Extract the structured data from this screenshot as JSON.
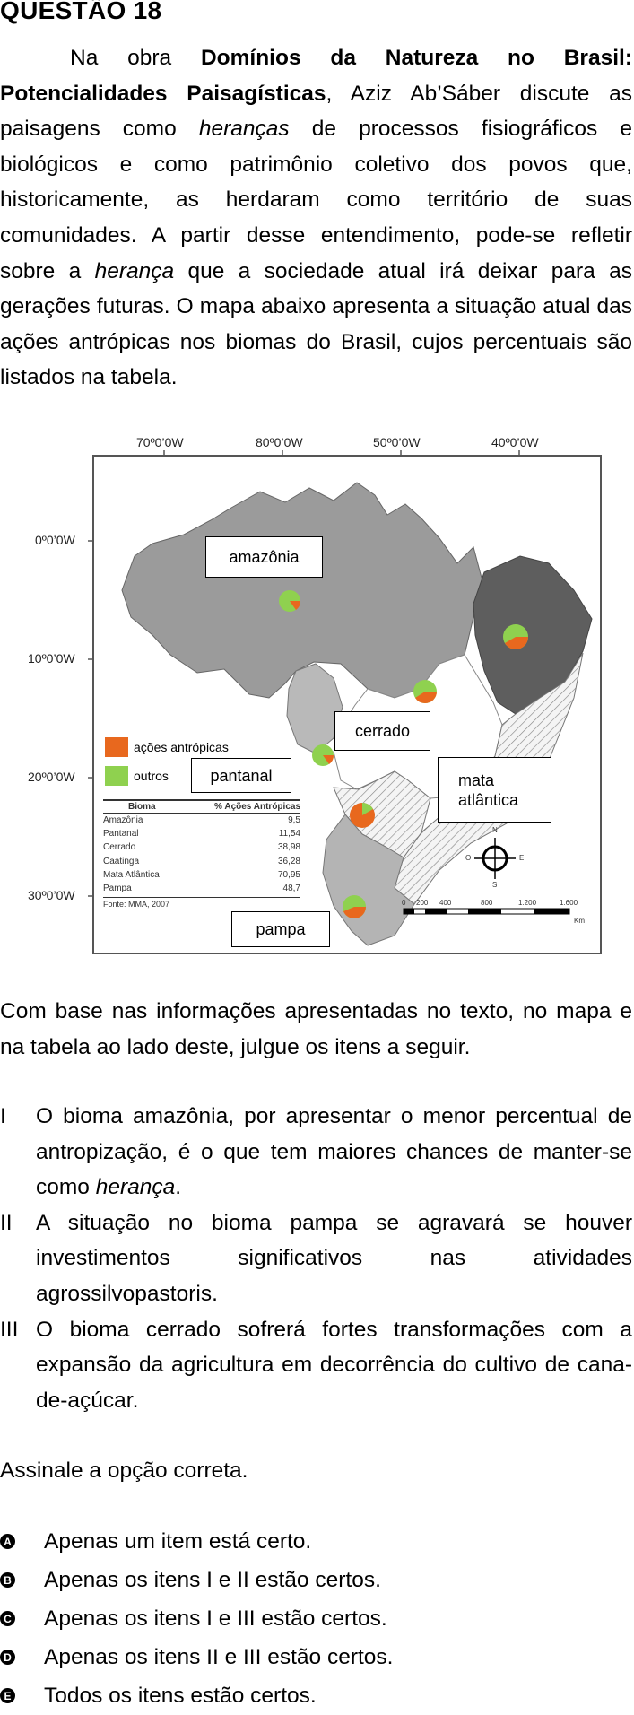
{
  "question": {
    "heading": "QUESTÃO 18",
    "intro": {
      "before_title": "Na obra ",
      "title": "Domínios da Natureza no Brasil: Potencialidades Paisagísticas",
      "part1": ", Aziz Ab’Sáber discute as paisagens como ",
      "em1": "heranças",
      "part2": " de processos fisiográficos e biológicos e como patrimônio coletivo dos povos que, historicamente, as herdaram como território de suas comunidades. A partir desse entendimento, pode-se refletir sobre a ",
      "em2": "herança",
      "part3": " que a sociedade atual irá deixar para as gerações futuras. O mapa abaixo apresenta a situação atual das ações antrópicas nos biomas do Brasil, cujos percentuais são listados na tabela."
    },
    "map": {
      "top_coords": [
        "70º0’0W",
        "80º0’0W",
        "50º0’0W",
        "40º0’0W"
      ],
      "left_coords": [
        "0º0’0W",
        "10º0’0W",
        "20º0’0W",
        "30º0’0W"
      ],
      "biome_labels": {
        "amazonia": "amazônia",
        "cerrado": "cerrado",
        "pantanal": "pantanal",
        "mata_line1": "mata",
        "mata_line2": "atlântica",
        "pampa": "pampa"
      },
      "legend": {
        "anthropic": "ações antrópicas",
        "others": "outros",
        "anthropic_color": "#e8681e",
        "others_color": "#8fd14f"
      },
      "table": {
        "col_biome": "Bioma",
        "col_pct": "% Ações Antrópicas",
        "rows": [
          {
            "biome": "Amazônia",
            "pct": "9,5"
          },
          {
            "biome": "Pantanal",
            "pct": "11,54"
          },
          {
            "biome": "Cerrado",
            "pct": "38,98"
          },
          {
            "biome": "Caatinga",
            "pct": "36,28"
          },
          {
            "biome": "Mata Atlântica",
            "pct": "70,95"
          },
          {
            "biome": "Pampa",
            "pct": "48,7"
          }
        ],
        "source": "Fonte: MMA, 2007"
      },
      "scale": {
        "ticks": [
          "0",
          "200",
          "400",
          "800",
          "1.200",
          "1.600"
        ],
        "unit": "Km"
      },
      "compass": {
        "n": "N",
        "s": "S",
        "e": "E",
        "w": "O"
      }
    },
    "paragraph2": "Com base nas informações apresentadas no texto, no mapa e na tabela ao lado deste, julgue os itens a seguir.",
    "items": [
      {
        "num": "I",
        "pre": "O bioma amazônia, por apresentar o menor percentual de antropização, é o que tem maiores chances de manter-se como ",
        "em": "herança",
        "post": "."
      },
      {
        "num": "II",
        "pre": "A situação no bioma pampa se agravará se houver investimentos significativos nas atividades agrossilvopastoris.",
        "em": "",
        "post": ""
      },
      {
        "num": "III",
        "pre": "O bioma cerrado sofrerá fortes transformações com a expansão da agricultura em decorrência do cultivo de cana-de-açúcar.",
        "em": "",
        "post": ""
      }
    ],
    "prompt": "Assinale a opção correta.",
    "options": [
      {
        "letter": "A",
        "text": "Apenas um item está certo."
      },
      {
        "letter": "B",
        "text": "Apenas os itens I e II estão certos."
      },
      {
        "letter": "C",
        "text": "Apenas os itens I e III estão certos."
      },
      {
        "letter": "D",
        "text": "Apenas os itens II e III estão certos."
      },
      {
        "letter": "E",
        "text": "Todos os itens estão certos."
      }
    ]
  }
}
